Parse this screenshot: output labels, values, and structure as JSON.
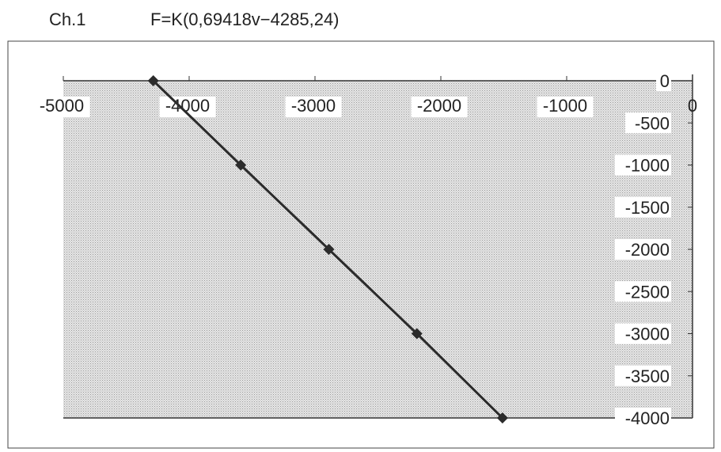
{
  "header": {
    "channel": "Ch.1",
    "formula": "F=K(0,69418v−4285,24)"
  },
  "colors": {
    "plot_fill": "#d9d9d9",
    "line": "#2b2b2b",
    "marker": "#2b2b2b",
    "label_bg": "#ffffff"
  },
  "chart_data": {
    "type": "line",
    "title": "",
    "xlabel": "",
    "ylabel": "",
    "xlim": [
      -5000,
      0
    ],
    "ylim": [
      -4000,
      0
    ],
    "x_ticks": [
      "-5000",
      "-4000",
      "-3000",
      "-2000",
      "-1000",
      "0"
    ],
    "x_tick_values": [
      -5000,
      -4000,
      -3000,
      -2000,
      -1000,
      0
    ],
    "y_ticks": [
      "0",
      "-500",
      "-1000",
      "-1500",
      "-2000",
      "-2500",
      "-3000",
      "-3500",
      "-4000"
    ],
    "y_tick_values": [
      0,
      -500,
      -1000,
      -1500,
      -2000,
      -2500,
      -3000,
      -3500,
      -4000
    ],
    "grid": false,
    "marker": "diamond",
    "series": [
      {
        "x": [
          -4285,
          -3590,
          -2890,
          -2190,
          -1510
        ],
        "y": [
          0,
          -1000,
          -2000,
          -3000,
          -4000
        ]
      }
    ]
  }
}
